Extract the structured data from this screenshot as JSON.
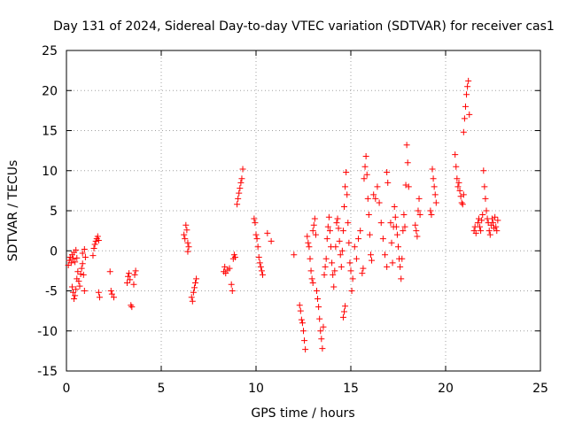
{
  "chart_data": {
    "type": "scatter",
    "title": "Day 131 of 2024, Sidereal Day-to-day VTEC variation (SDTVAR) for receiver cas1",
    "xlabel": "GPS time / hours",
    "ylabel": "SDTVAR / TECUs",
    "xlim": [
      0,
      25
    ],
    "ylim": [
      -15,
      25
    ],
    "xticks": [
      0,
      5,
      10,
      15,
      20,
      25
    ],
    "xtick_labels": [
      "0",
      "5",
      "10",
      "15",
      "20",
      "25"
    ],
    "yticks": [
      -15,
      -10,
      -5,
      0,
      5,
      10,
      15,
      20,
      25
    ],
    "ytick_labels": [
      "-15",
      "-10",
      "-5",
      "0",
      "5",
      "10",
      "15",
      "20",
      "25"
    ],
    "grid": true,
    "marker": "+",
    "color": "#ff0000",
    "series": [
      {
        "name": "cas1",
        "points": [
          [
            0.1,
            -1.8
          ],
          [
            0.15,
            -1.2
          ],
          [
            0.2,
            -0.8
          ],
          [
            0.25,
            -1.5
          ],
          [
            0.3,
            -0.5
          ],
          [
            0.35,
            -1.0
          ],
          [
            0.4,
            -0.2
          ],
          [
            0.45,
            -1.4
          ],
          [
            0.5,
            0.1
          ],
          [
            0.55,
            -0.9
          ],
          [
            0.3,
            -4.5
          ],
          [
            0.35,
            -5.2
          ],
          [
            0.4,
            -6.0
          ],
          [
            0.45,
            -5.6
          ],
          [
            0.5,
            -4.8
          ],
          [
            0.55,
            -3.5
          ],
          [
            0.6,
            -2.6
          ],
          [
            0.65,
            -3.8
          ],
          [
            0.7,
            -4.4
          ],
          [
            0.75,
            -2.9
          ],
          [
            0.8,
            -2.2
          ],
          [
            0.85,
            -1.6
          ],
          [
            0.9,
            -3.0
          ],
          [
            0.95,
            -5.0
          ],
          [
            1.0,
            -0.8
          ],
          [
            0.95,
            0.2
          ],
          [
            0.85,
            -0.3
          ],
          [
            1.4,
            -0.6
          ],
          [
            1.45,
            0.3
          ],
          [
            1.5,
            0.8
          ],
          [
            1.55,
            1.2
          ],
          [
            1.6,
            1.5
          ],
          [
            1.65,
            1.8
          ],
          [
            1.7,
            1.3
          ],
          [
            1.7,
            -5.2
          ],
          [
            1.75,
            -5.8
          ],
          [
            2.3,
            -2.6
          ],
          [
            2.35,
            -5.0
          ],
          [
            2.4,
            -5.4
          ],
          [
            2.5,
            -5.8
          ],
          [
            3.2,
            -4.0
          ],
          [
            3.25,
            -3.2
          ],
          [
            3.3,
            -2.8
          ],
          [
            3.35,
            -3.6
          ],
          [
            3.4,
            -6.8
          ],
          [
            3.45,
            -7.0
          ],
          [
            3.55,
            -4.2
          ],
          [
            3.6,
            -3.0
          ],
          [
            3.65,
            -2.5
          ],
          [
            6.2,
            2.0
          ],
          [
            6.25,
            1.5
          ],
          [
            6.3,
            3.2
          ],
          [
            6.35,
            2.6
          ],
          [
            6.4,
            1.0
          ],
          [
            6.45,
            0.5
          ],
          [
            6.4,
            -0.1
          ],
          [
            6.6,
            -5.8
          ],
          [
            6.65,
            -6.3
          ],
          [
            6.7,
            -5.2
          ],
          [
            6.75,
            -4.6
          ],
          [
            6.8,
            -4.0
          ],
          [
            6.85,
            -3.5
          ],
          [
            8.3,
            -2.6
          ],
          [
            8.35,
            -2.0
          ],
          [
            8.4,
            -2.8
          ],
          [
            8.5,
            -2.4
          ],
          [
            8.6,
            -2.2
          ],
          [
            8.7,
            -4.2
          ],
          [
            8.75,
            -5.0
          ],
          [
            8.8,
            -1.0
          ],
          [
            8.85,
            -0.5
          ],
          [
            8.9,
            -0.8
          ],
          [
            9.0,
            5.8
          ],
          [
            9.05,
            6.5
          ],
          [
            9.1,
            7.2
          ],
          [
            9.15,
            7.8
          ],
          [
            9.2,
            8.5
          ],
          [
            9.25,
            9.0
          ],
          [
            9.3,
            10.2
          ],
          [
            9.9,
            4.0
          ],
          [
            9.95,
            3.5
          ],
          [
            10.0,
            2.0
          ],
          [
            10.05,
            1.5
          ],
          [
            10.1,
            0.5
          ],
          [
            10.15,
            -0.8
          ],
          [
            10.2,
            -1.5
          ],
          [
            10.25,
            -2.0
          ],
          [
            10.3,
            -2.5
          ],
          [
            10.35,
            -3.0
          ],
          [
            10.6,
            2.2
          ],
          [
            10.8,
            1.2
          ],
          [
            12.0,
            -0.5
          ],
          [
            12.3,
            -6.8
          ],
          [
            12.35,
            -7.5
          ],
          [
            12.4,
            -8.6
          ],
          [
            12.45,
            -9.0
          ],
          [
            12.5,
            -10.0
          ],
          [
            12.55,
            -11.2
          ],
          [
            12.6,
            -12.3
          ],
          [
            12.7,
            1.8
          ],
          [
            12.75,
            1.0
          ],
          [
            12.8,
            0.5
          ],
          [
            12.85,
            -1.0
          ],
          [
            12.9,
            -2.5
          ],
          [
            12.95,
            -3.5
          ],
          [
            13.0,
            -4.0
          ],
          [
            13.0,
            2.5
          ],
          [
            13.05,
            3.2
          ],
          [
            13.1,
            4.0
          ],
          [
            13.15,
            2.0
          ],
          [
            13.2,
            -5.0
          ],
          [
            13.25,
            -6.0
          ],
          [
            13.3,
            -7.0
          ],
          [
            13.35,
            -8.5
          ],
          [
            13.4,
            -10.0
          ],
          [
            13.45,
            -11.0
          ],
          [
            13.5,
            -12.2
          ],
          [
            13.55,
            -9.5
          ],
          [
            13.6,
            -3.0
          ],
          [
            13.65,
            -2.0
          ],
          [
            13.7,
            -1.0
          ],
          [
            13.75,
            1.5
          ],
          [
            13.8,
            3.0
          ],
          [
            13.85,
            4.2
          ],
          [
            13.9,
            2.5
          ],
          [
            13.95,
            0.5
          ],
          [
            14.0,
            -1.5
          ],
          [
            14.05,
            -3.0
          ],
          [
            14.1,
            -4.5
          ],
          [
            14.15,
            -2.5
          ],
          [
            14.2,
            0.5
          ],
          [
            14.25,
            3.5
          ],
          [
            14.3,
            4.0
          ],
          [
            14.35,
            2.8
          ],
          [
            14.4,
            1.2
          ],
          [
            14.45,
            -0.5
          ],
          [
            14.5,
            -2.0
          ],
          [
            14.55,
            0.0
          ],
          [
            14.6,
            2.5
          ],
          [
            14.65,
            5.5
          ],
          [
            14.7,
            8.0
          ],
          [
            14.75,
            9.8
          ],
          [
            14.8,
            7.0
          ],
          [
            14.85,
            3.5
          ],
          [
            14.9,
            1.0
          ],
          [
            14.95,
            -1.5
          ],
          [
            14.6,
            -8.3
          ],
          [
            14.65,
            -7.6
          ],
          [
            14.7,
            -6.9
          ],
          [
            15.0,
            -2.5
          ],
          [
            15.05,
            -5.0
          ],
          [
            15.1,
            -3.5
          ],
          [
            15.2,
            0.5
          ],
          [
            15.3,
            -1.0
          ],
          [
            15.4,
            1.5
          ],
          [
            15.5,
            2.5
          ],
          [
            15.6,
            -2.8
          ],
          [
            15.65,
            -2.2
          ],
          [
            15.7,
            9.0
          ],
          [
            15.75,
            10.5
          ],
          [
            15.8,
            11.8
          ],
          [
            15.85,
            9.5
          ],
          [
            15.9,
            6.5
          ],
          [
            15.95,
            4.5
          ],
          [
            16.0,
            2.0
          ],
          [
            16.05,
            -0.5
          ],
          [
            16.1,
            -1.2
          ],
          [
            16.2,
            7.0
          ],
          [
            16.3,
            6.5
          ],
          [
            16.4,
            8.0
          ],
          [
            16.5,
            6.0
          ],
          [
            16.6,
            3.5
          ],
          [
            16.7,
            1.5
          ],
          [
            16.8,
            -0.5
          ],
          [
            16.9,
            -2.0
          ],
          [
            16.9,
            9.8
          ],
          [
            16.95,
            8.5
          ],
          [
            17.1,
            3.5
          ],
          [
            17.15,
            1.0
          ],
          [
            17.2,
            -1.5
          ],
          [
            17.25,
            3.0
          ],
          [
            17.3,
            5.5
          ],
          [
            17.35,
            4.2
          ],
          [
            17.4,
            3.0
          ],
          [
            17.45,
            2.0
          ],
          [
            17.5,
            0.5
          ],
          [
            17.55,
            -1.0
          ],
          [
            17.6,
            -2.0
          ],
          [
            17.65,
            -3.5
          ],
          [
            17.7,
            -1.0
          ],
          [
            17.75,
            2.5
          ],
          [
            17.8,
            4.5
          ],
          [
            17.85,
            3.0
          ],
          [
            17.9,
            8.2
          ],
          [
            17.95,
            13.2
          ],
          [
            18.0,
            11.0
          ],
          [
            18.05,
            8.0
          ],
          [
            18.4,
            3.2
          ],
          [
            18.45,
            2.5
          ],
          [
            18.5,
            1.8
          ],
          [
            18.55,
            5.0
          ],
          [
            18.6,
            6.5
          ],
          [
            18.65,
            4.5
          ],
          [
            19.2,
            5.0
          ],
          [
            19.25,
            4.5
          ],
          [
            19.3,
            10.2
          ],
          [
            19.35,
            9.0
          ],
          [
            19.4,
            8.0
          ],
          [
            19.45,
            7.0
          ],
          [
            19.5,
            6.0
          ],
          [
            20.5,
            12.0
          ],
          [
            20.55,
            10.5
          ],
          [
            20.6,
            9.0
          ],
          [
            20.65,
            8.0
          ],
          [
            20.7,
            8.5
          ],
          [
            20.75,
            7.5
          ],
          [
            20.8,
            6.8
          ],
          [
            20.85,
            6.0
          ],
          [
            20.9,
            5.8
          ],
          [
            20.95,
            7.0
          ],
          [
            20.95,
            14.8
          ],
          [
            21.0,
            16.5
          ],
          [
            21.05,
            18.0
          ],
          [
            21.1,
            19.5
          ],
          [
            21.15,
            20.5
          ],
          [
            21.2,
            21.2
          ],
          [
            21.25,
            17.0
          ],
          [
            21.5,
            2.5
          ],
          [
            21.55,
            3.0
          ],
          [
            21.6,
            2.2
          ],
          [
            21.7,
            3.5
          ],
          [
            21.75,
            4.0
          ],
          [
            21.8,
            3.0
          ],
          [
            21.85,
            2.5
          ],
          [
            21.9,
            3.8
          ],
          [
            21.95,
            4.5
          ],
          [
            22.0,
            10.0
          ],
          [
            22.05,
            8.0
          ],
          [
            22.1,
            6.5
          ],
          [
            22.15,
            5.0
          ],
          [
            22.2,
            4.0
          ],
          [
            22.25,
            3.5
          ],
          [
            22.3,
            2.5
          ],
          [
            22.35,
            2.0
          ],
          [
            22.4,
            3.2
          ],
          [
            22.45,
            4.0
          ],
          [
            22.5,
            3.5
          ],
          [
            22.55,
            2.8
          ],
          [
            22.6,
            4.2
          ],
          [
            22.65,
            3.0
          ],
          [
            22.7,
            2.5
          ],
          [
            22.75,
            3.8
          ]
        ]
      }
    ]
  }
}
